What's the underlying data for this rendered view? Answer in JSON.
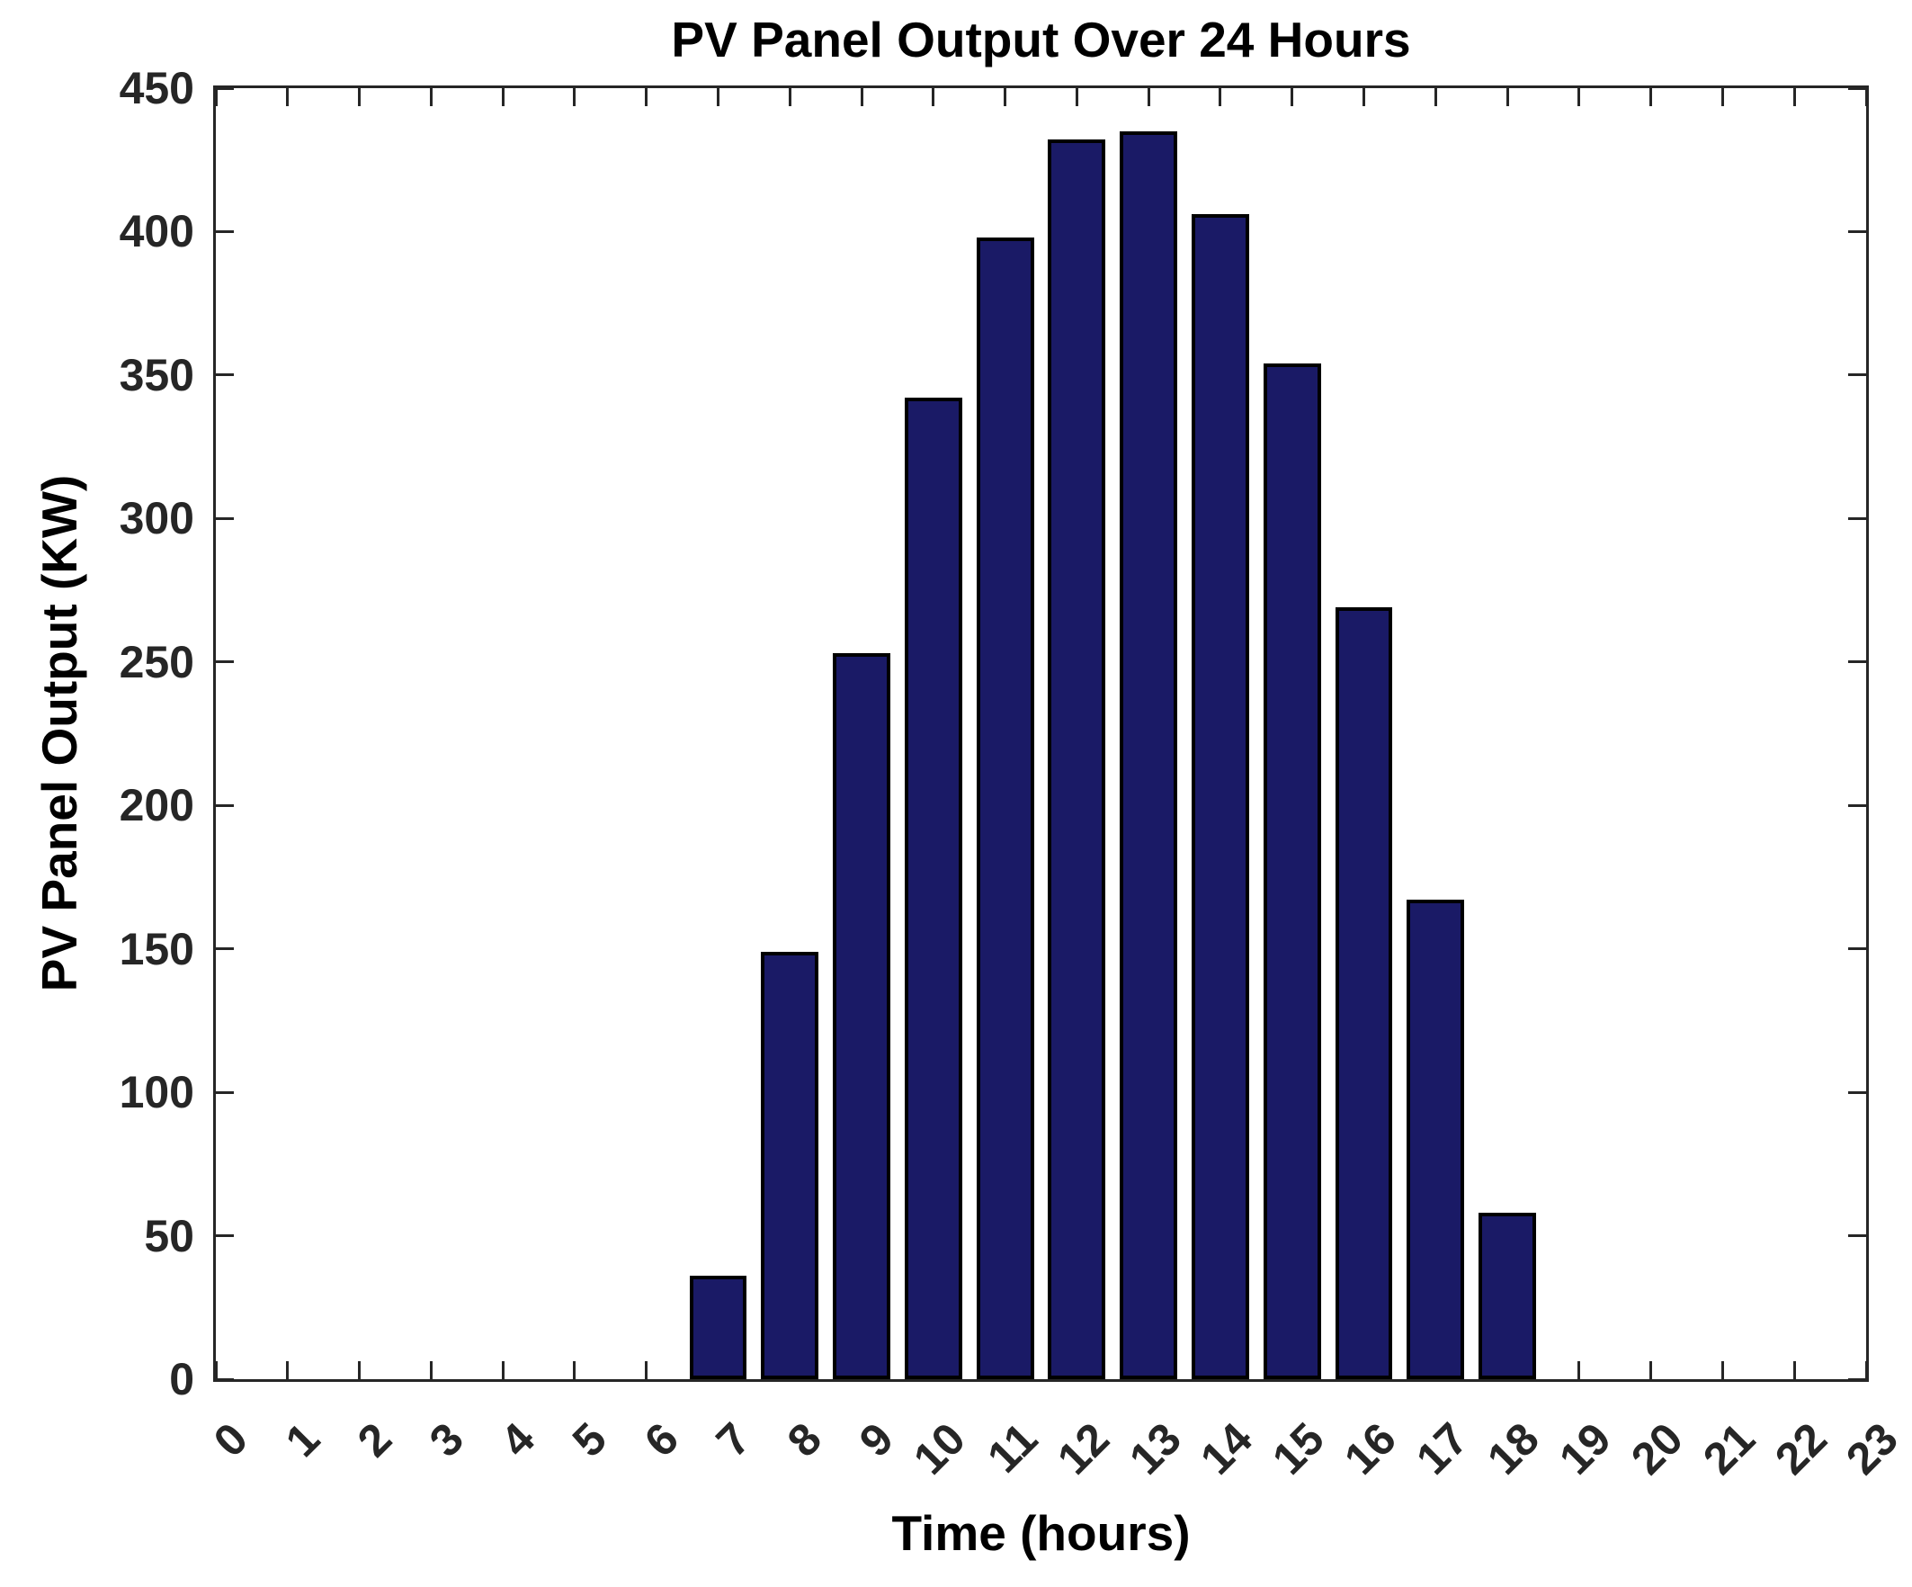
{
  "figure": {
    "title": "PV Panel Output Over 24 Hours",
    "xlabel": "Time (hours)",
    "ylabel": "PV Panel Output (KW)"
  },
  "chart_data": {
    "type": "bar",
    "title": "PV Panel Output Over 24 Hours",
    "xlabel": "Time (hours)",
    "ylabel": "PV Panel Output (KW)",
    "categories": [
      0,
      1,
      2,
      3,
      4,
      5,
      6,
      7,
      8,
      9,
      10,
      11,
      12,
      13,
      14,
      15,
      16,
      17,
      18,
      19,
      20,
      21,
      22,
      23
    ],
    "values": [
      0,
      0,
      0,
      0,
      0,
      0,
      0,
      36,
      149,
      253,
      342,
      398,
      432,
      435,
      406,
      354,
      269,
      167,
      58,
      0,
      0,
      0,
      0,
      0
    ],
    "yticks": [
      0,
      50,
      100,
      150,
      200,
      250,
      300,
      350,
      400,
      450
    ],
    "ylim": [
      0,
      450
    ],
    "xlim": [
      0,
      23
    ],
    "bar_width_fraction": 0.8,
    "grid": false,
    "legend": null,
    "colors": {
      "bar_fill": "#1a1a66",
      "bar_edge": "#000000",
      "axis": "#262626",
      "tick_label": "#262626",
      "text": "#000000",
      "background": "#ffffff"
    }
  }
}
